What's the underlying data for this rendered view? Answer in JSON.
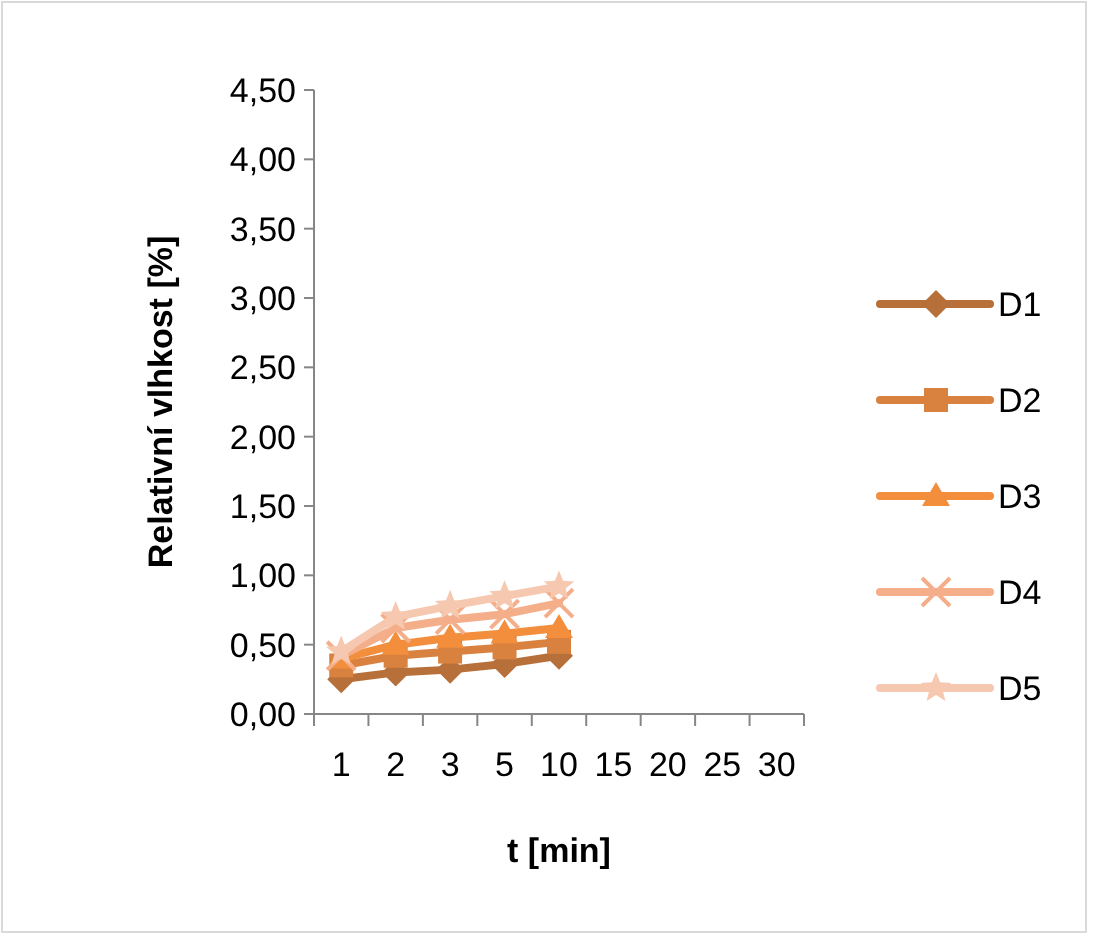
{
  "chart_data": {
    "type": "line",
    "xlabel": "t [min]",
    "ylabel": "Relativní vlhkost [%]",
    "categories": [
      "1",
      "2",
      "3",
      "5",
      "10",
      "15",
      "20",
      "25",
      "30"
    ],
    "ylim": [
      0,
      4.5
    ],
    "yticks": [
      {
        "value": 0,
        "label": "0,00"
      },
      {
        "value": 0.5,
        "label": "0,50"
      },
      {
        "value": 1,
        "label": "1,00"
      },
      {
        "value": 1.5,
        "label": "1,50"
      },
      {
        "value": 2,
        "label": "2,00"
      },
      {
        "value": 2.5,
        "label": "2,50"
      },
      {
        "value": 3,
        "label": "3,00"
      },
      {
        "value": 3.5,
        "label": "3,50"
      },
      {
        "value": 4,
        "label": "4,00"
      },
      {
        "value": 4.5,
        "label": "4,50"
      }
    ],
    "grid": false,
    "legend": "right",
    "series": [
      {
        "name": "D1",
        "color": "#b8703a",
        "marker": "diamond",
        "values": [
          0.25,
          0.3,
          0.32,
          0.36,
          0.42,
          null,
          null,
          null,
          null
        ]
      },
      {
        "name": "D2",
        "color": "#d9823f",
        "marker": "square",
        "values": [
          0.35,
          0.42,
          0.45,
          0.48,
          0.52,
          null,
          null,
          null,
          null
        ]
      },
      {
        "name": "D3",
        "color": "#f28e3c",
        "marker": "triangle",
        "values": [
          0.4,
          0.5,
          0.55,
          0.58,
          0.62,
          null,
          null,
          null,
          null
        ]
      },
      {
        "name": "D4",
        "color": "#f4ae8a",
        "marker": "cross",
        "values": [
          0.42,
          0.62,
          0.68,
          0.72,
          0.8,
          null,
          null,
          null,
          null
        ]
      },
      {
        "name": "D5",
        "color": "#f6c8b0",
        "marker": "star",
        "values": [
          0.45,
          0.7,
          0.78,
          0.85,
          0.92,
          null,
          null,
          null,
          null
        ]
      }
    ]
  }
}
